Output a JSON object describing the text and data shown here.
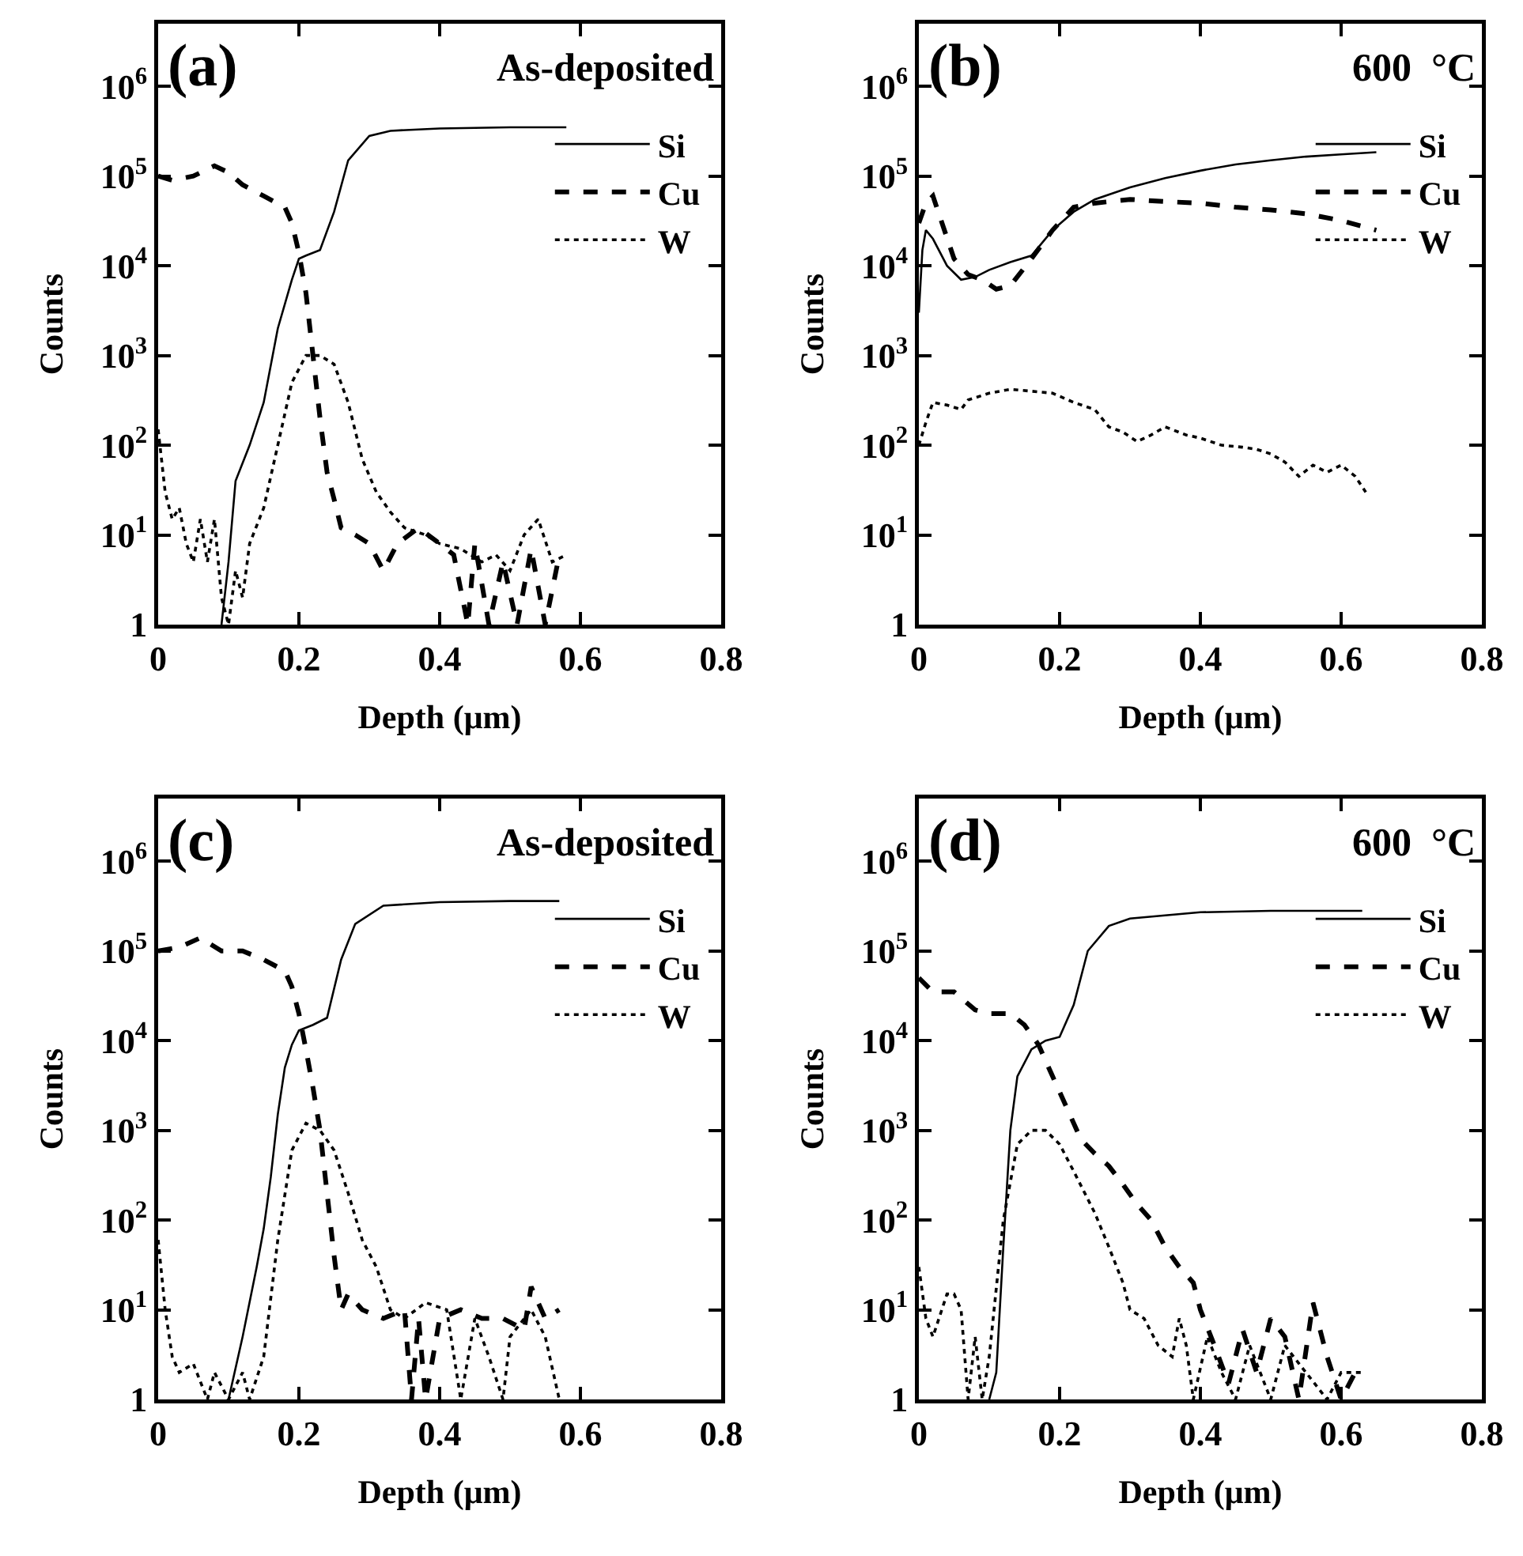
{
  "chart_data": [
    {
      "type": "line",
      "annotations": [
        "(a)",
        "As-deposited"
      ],
      "xlabel": "Depth (μm)",
      "ylabel": "Counts",
      "log": "y",
      "xlim": [
        0,
        0.8
      ],
      "xticks": [
        0,
        0.2,
        0.4,
        0.6,
        0.8
      ],
      "ylim": [
        1,
        5000000
      ],
      "yticks": [
        {
          "value": 1,
          "label": "1"
        },
        {
          "value": 10,
          "label": "10$^{1}$"
        },
        {
          "value": 100,
          "label": "10$^{2}$"
        },
        {
          "value": 1000,
          "label": "10$^{3}$"
        },
        {
          "value": 10000,
          "label": "10$^{4}$"
        },
        {
          "value": 100000,
          "label": "10$^{5}$"
        },
        {
          "value": 1000000,
          "label": "10$^{6}$"
        }
      ],
      "legend": "right",
      "marker": "none",
      "series": [
        {
          "name": "Si",
          "color": "#000000",
          "line_style": "solid",
          "x": [
            0.09,
            0.1,
            0.11,
            0.13,
            0.15,
            0.17,
            0.19,
            0.2,
            0.21,
            0.23,
            0.25,
            0.27,
            0.3,
            0.33,
            0.4,
            0.5,
            0.58
          ],
          "values": [
            1,
            5,
            40,
            100,
            300,
            2000,
            7000,
            12000,
            13000,
            15000,
            40000,
            150000,
            280000,
            320000,
            340000,
            350000,
            350000
          ]
        },
        {
          "name": "Cu",
          "color": "#000000",
          "line_style": "dashed",
          "x": [
            0,
            0.02,
            0.05,
            0.08,
            0.1,
            0.12,
            0.15,
            0.18,
            0.19,
            0.2,
            0.21,
            0.22,
            0.23,
            0.24,
            0.25,
            0.26,
            0.28,
            0.3,
            0.32,
            0.34,
            0.37,
            0.4,
            0.42,
            0.44,
            0.45,
            0.47,
            0.49,
            0.51,
            0.53,
            0.55,
            0.57
          ],
          "values": [
            100000,
            90000,
            100000,
            130000,
            110000,
            80000,
            60000,
            45000,
            30000,
            14000,
            5000,
            1000,
            200,
            50,
            25,
            12,
            10,
            8,
            4,
            8,
            12,
            8,
            6,
            1,
            8,
            1,
            5,
            1,
            7,
            1,
            6
          ]
        },
        {
          "name": "W",
          "color": "#000000",
          "line_style": "dotted",
          "x": [
            0,
            0.01,
            0.02,
            0.03,
            0.04,
            0.05,
            0.06,
            0.07,
            0.08,
            0.09,
            0.1,
            0.11,
            0.12,
            0.13,
            0.15,
            0.17,
            0.19,
            0.21,
            0.23,
            0.25,
            0.27,
            0.29,
            0.31,
            0.33,
            0.35,
            0.38,
            0.4,
            0.43,
            0.46,
            0.48,
            0.5,
            0.52,
            0.54,
            0.56,
            0.58
          ],
          "values": [
            150,
            30,
            15,
            20,
            8,
            5,
            15,
            5,
            15,
            2,
            1,
            4,
            2,
            8,
            20,
            100,
            500,
            1000,
            1000,
            800,
            300,
            70,
            30,
            18,
            12,
            10,
            8,
            7,
            5,
            6,
            4,
            10,
            15,
            5,
            6
          ]
        }
      ]
    },
    {
      "type": "line",
      "annotations": [
        "(b)",
        "600  °C"
      ],
      "xlabel": "Depth (μm)",
      "ylabel": "Counts",
      "log": "y",
      "xlim": [
        0,
        0.8
      ],
      "xticks": [
        0,
        0.2,
        0.4,
        0.6,
        0.8
      ],
      "ylim": [
        1,
        5000000
      ],
      "yticks": [
        {
          "value": 1,
          "label": "1"
        },
        {
          "value": 10,
          "label": "10$^{1}$"
        },
        {
          "value": 100,
          "label": "10$^{2}$"
        },
        {
          "value": 1000,
          "label": "10$^{3}$"
        },
        {
          "value": 10000,
          "label": "10$^{4}$"
        },
        {
          "value": 100000,
          "label": "10$^{5}$"
        },
        {
          "value": 1000000,
          "label": "10$^{6}$"
        }
      ],
      "legend": "right",
      "marker": "none",
      "series": [
        {
          "name": "Si",
          "color": "#000000",
          "line_style": "solid",
          "x": [
            0,
            0.005,
            0.01,
            0.02,
            0.04,
            0.06,
            0.08,
            0.1,
            0.13,
            0.16,
            0.19,
            0.22,
            0.25,
            0.3,
            0.35,
            0.4,
            0.45,
            0.5,
            0.55,
            0.6,
            0.65
          ],
          "values": [
            3000,
            15000,
            25000,
            20000,
            10000,
            7000,
            7500,
            9000,
            11000,
            13000,
            25000,
            40000,
            55000,
            75000,
            95000,
            115000,
            135000,
            150000,
            165000,
            175000,
            185000
          ]
        },
        {
          "name": "Cu",
          "color": "#000000",
          "line_style": "dashed",
          "x": [
            0,
            0.01,
            0.02,
            0.03,
            0.05,
            0.07,
            0.09,
            0.11,
            0.13,
            0.16,
            0.19,
            0.22,
            0.25,
            0.3,
            0.35,
            0.4,
            0.45,
            0.5,
            0.55,
            0.6,
            0.65
          ],
          "values": [
            30000,
            50000,
            60000,
            35000,
            12000,
            8000,
            7000,
            5500,
            6000,
            12000,
            25000,
            45000,
            50000,
            55000,
            52000,
            50000,
            45000,
            42000,
            38000,
            32000,
            25000
          ]
        },
        {
          "name": "W",
          "color": "#000000",
          "line_style": "dotted",
          "x": [
            0,
            0.01,
            0.02,
            0.04,
            0.06,
            0.07,
            0.1,
            0.13,
            0.16,
            0.19,
            0.22,
            0.25,
            0.27,
            0.29,
            0.31,
            0.33,
            0.35,
            0.38,
            0.4,
            0.43,
            0.46,
            0.48,
            0.5,
            0.52,
            0.54,
            0.56,
            0.58,
            0.6,
            0.62,
            0.635
          ],
          "values": [
            100,
            180,
            300,
            280,
            250,
            320,
            380,
            420,
            400,
            380,
            300,
            250,
            160,
            140,
            110,
            130,
            160,
            130,
            120,
            100,
            95,
            90,
            80,
            65,
            45,
            60,
            50,
            60,
            45,
            30
          ]
        }
      ]
    },
    {
      "type": "line",
      "annotations": [
        "(c)",
        "As-deposited"
      ],
      "xlabel": "Depth (μm)",
      "ylabel": "Counts",
      "log": "y",
      "xlim": [
        0,
        0.8
      ],
      "xticks": [
        0,
        0.2,
        0.4,
        0.6,
        0.8
      ],
      "ylim": [
        1,
        5000000
      ],
      "yticks": [
        {
          "value": 1,
          "label": "1"
        },
        {
          "value": 10,
          "label": "10$^{1}$"
        },
        {
          "value": 100,
          "label": "10$^{2}$"
        },
        {
          "value": 1000,
          "label": "10$^{3}$"
        },
        {
          "value": 10000,
          "label": "10$^{4}$"
        },
        {
          "value": 100000,
          "label": "10$^{5}$"
        },
        {
          "value": 1000000,
          "label": "10$^{6}$"
        }
      ],
      "legend": "right",
      "marker": "none",
      "series": [
        {
          "name": "Si",
          "color": "#000000",
          "line_style": "solid",
          "x": [
            0.1,
            0.12,
            0.14,
            0.15,
            0.16,
            0.17,
            0.18,
            0.19,
            0.2,
            0.22,
            0.24,
            0.26,
            0.28,
            0.32,
            0.4,
            0.5,
            0.57
          ],
          "values": [
            1,
            5,
            30,
            80,
            300,
            1500,
            5000,
            9000,
            13000,
            15000,
            18000,
            80000,
            200000,
            320000,
            350000,
            360000,
            360000
          ]
        },
        {
          "name": "Cu",
          "color": "#000000",
          "line_style": "dashed",
          "x": [
            0,
            0.03,
            0.06,
            0.09,
            0.12,
            0.15,
            0.18,
            0.19,
            0.2,
            0.21,
            0.22,
            0.23,
            0.24,
            0.25,
            0.26,
            0.27,
            0.29,
            0.32,
            0.35,
            0.36,
            0.37,
            0.38,
            0.4,
            0.43,
            0.46,
            0.49,
            0.52,
            0.53,
            0.55,
            0.57
          ],
          "values": [
            100000,
            110000,
            140000,
            100000,
            100000,
            80000,
            60000,
            40000,
            20000,
            8000,
            3000,
            1000,
            200,
            40,
            10,
            15,
            10,
            8,
            10,
            1,
            8,
            1,
            8,
            10,
            8,
            8,
            6,
            18,
            8,
            10
          ]
        },
        {
          "name": "W",
          "color": "#000000",
          "line_style": "dotted",
          "x": [
            0,
            0.01,
            0.02,
            0.03,
            0.05,
            0.07,
            0.08,
            0.1,
            0.12,
            0.13,
            0.15,
            0.17,
            0.19,
            0.21,
            0.23,
            0.25,
            0.27,
            0.29,
            0.31,
            0.33,
            0.35,
            0.38,
            0.41,
            0.43,
            0.45,
            0.47,
            0.49,
            0.5,
            0.53,
            0.55,
            0.57
          ],
          "values": [
            60,
            10,
            3,
            2,
            2.5,
            1,
            2,
            1,
            2,
            1,
            3,
            60,
            600,
            1200,
            1000,
            600,
            200,
            60,
            30,
            10,
            8,
            12,
            10,
            1,
            8,
            3,
            1,
            5,
            10,
            5,
            1
          ]
        }
      ]
    },
    {
      "type": "line",
      "annotations": [
        "(d)",
        "600  °C"
      ],
      "xlabel": "Depth (μm)",
      "ylabel": "Counts",
      "log": "y",
      "xlim": [
        0,
        0.8
      ],
      "xticks": [
        0,
        0.2,
        0.4,
        0.6,
        0.8
      ],
      "ylim": [
        1,
        5000000
      ],
      "yticks": [
        {
          "value": 1,
          "label": "1"
        },
        {
          "value": 10,
          "label": "10$^{1}$"
        },
        {
          "value": 100,
          "label": "10$^{2}$"
        },
        {
          "value": 1000,
          "label": "10$^{3}$"
        },
        {
          "value": 10000,
          "label": "10$^{4}$"
        },
        {
          "value": 100000,
          "label": "10$^{5}$"
        },
        {
          "value": 1000000,
          "label": "10$^{6}$"
        }
      ],
      "legend": "right",
      "marker": "none",
      "series": [
        {
          "name": "Si",
          "color": "#000000",
          "line_style": "solid",
          "x": [
            0.1,
            0.11,
            0.12,
            0.13,
            0.14,
            0.16,
            0.18,
            0.2,
            0.22,
            0.24,
            0.27,
            0.3,
            0.4,
            0.5,
            0.63
          ],
          "values": [
            1,
            2,
            50,
            1000,
            4000,
            8000,
            10000,
            11000,
            25000,
            100000,
            190000,
            230000,
            270000,
            280000,
            280000
          ]
        },
        {
          "name": "Cu",
          "color": "#000000",
          "line_style": "dashed",
          "x": [
            0,
            0.02,
            0.05,
            0.08,
            0.1,
            0.13,
            0.15,
            0.17,
            0.19,
            0.21,
            0.23,
            0.25,
            0.27,
            0.29,
            0.31,
            0.33,
            0.35,
            0.37,
            0.39,
            0.4,
            0.42,
            0.44,
            0.46,
            0.48,
            0.5,
            0.52,
            0.54,
            0.56,
            0.58,
            0.6,
            0.62,
            0.63
          ],
          "values": [
            50000,
            35000,
            35000,
            22000,
            20000,
            20000,
            15000,
            9000,
            4000,
            1800,
            800,
            550,
            400,
            250,
            150,
            100,
            50,
            30,
            20,
            10,
            4,
            1.5,
            6,
            2,
            8,
            5,
            1,
            12,
            3,
            1,
            2,
            2
          ]
        },
        {
          "name": "W",
          "color": "#000000",
          "line_style": "dotted",
          "x": [
            0,
            0.01,
            0.02,
            0.04,
            0.05,
            0.06,
            0.07,
            0.08,
            0.09,
            0.1,
            0.12,
            0.14,
            0.16,
            0.18,
            0.2,
            0.22,
            0.25,
            0.27,
            0.29,
            0.3,
            0.32,
            0.34,
            0.36,
            0.37,
            0.38,
            0.39,
            0.41,
            0.43,
            0.45,
            0.47,
            0.5,
            0.52,
            0.55,
            0.58,
            0.6,
            0.63
          ],
          "values": [
            30,
            8,
            5,
            15,
            15,
            10,
            1,
            5,
            1,
            3,
            100,
            700,
            1000,
            1000,
            700,
            350,
            120,
            50,
            20,
            10,
            8,
            4,
            3,
            8,
            4,
            1,
            5,
            2,
            1,
            4,
            1,
            4,
            2,
            1,
            2,
            2
          ]
        }
      ]
    }
  ]
}
